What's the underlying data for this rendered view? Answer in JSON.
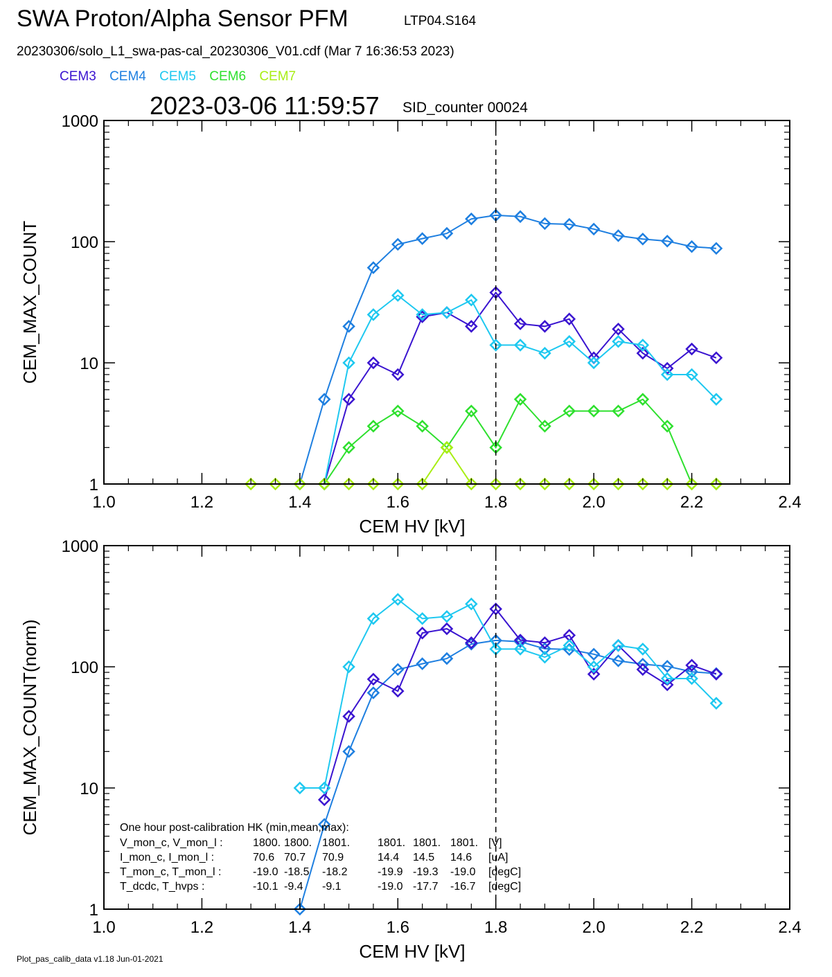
{
  "header": {
    "title": "SWA Proton/Alpha Sensor PFM",
    "subtitle": "LTP04.S164",
    "file_line": "20230306/solo_L1_swa-pas-cal_20230306_V01.cdf  (Mar  7 16:36:53 2023)",
    "datetime": "2023-03-06 11:59:57",
    "sid_counter": "SID_counter 00024"
  },
  "legend": [
    {
      "label": "CEM3",
      "color": "#3a14d0"
    },
    {
      "label": "CEM4",
      "color": "#1e7fe0"
    },
    {
      "label": "CEM5",
      "color": "#1ec8f0"
    },
    {
      "label": "CEM6",
      "color": "#2ee02e"
    },
    {
      "label": "CEM7",
      "color": "#a8ee14"
    }
  ],
  "chart_data": [
    {
      "type": "line",
      "xlabel": "CEM HV [kV]",
      "ylabel": "CEM_MAX_COUNT",
      "xlim": [
        1.0,
        2.4
      ],
      "ylim": [
        1,
        1000
      ],
      "yscale": "log",
      "xticks": [
        "1.0",
        "1.2",
        "1.4",
        "1.6",
        "1.8",
        "2.0",
        "2.2",
        "2.4"
      ],
      "yticks": [
        "1",
        "10",
        "100",
        "1000"
      ],
      "vline": 1.8,
      "series": [
        {
          "name": "CEM4",
          "color": "#1e7fe0",
          "x": [
            1.4,
            1.45,
            1.5,
            1.55,
            1.6,
            1.65,
            1.7,
            1.75,
            1.8,
            1.85,
            1.9,
            1.95,
            2.0,
            2.05,
            2.1,
            2.15,
            2.2,
            2.25
          ],
          "y": [
            1,
            5,
            20,
            61,
            95,
            106,
            117,
            154,
            165,
            161,
            141,
            139,
            127,
            112,
            105,
            101,
            91,
            88
          ]
        },
        {
          "name": "CEM3",
          "color": "#3a14d0",
          "x": [
            1.45,
            1.5,
            1.55,
            1.6,
            1.65,
            1.7,
            1.75,
            1.8,
            1.85,
            1.9,
            1.95,
            2.0,
            2.05,
            2.1,
            2.15,
            2.2,
            2.25
          ],
          "y": [
            1,
            5,
            10,
            8,
            24,
            26,
            20,
            38,
            21,
            20,
            23,
            11,
            19,
            12,
            9,
            13,
            11
          ]
        },
        {
          "name": "CEM5",
          "color": "#1ec8f0",
          "x": [
            1.45,
            1.5,
            1.55,
            1.6,
            1.65,
            1.7,
            1.75,
            1.8,
            1.85,
            1.9,
            1.95,
            2.0,
            2.05,
            2.1,
            2.15,
            2.2,
            2.25
          ],
          "y": [
            1,
            10,
            25,
            36,
            25,
            26,
            33,
            14,
            14,
            12,
            15,
            10,
            15,
            14,
            8,
            8,
            5
          ]
        },
        {
          "name": "CEM6",
          "color": "#2ee02e",
          "x": [
            1.45,
            1.5,
            1.55,
            1.6,
            1.65,
            1.7,
            1.75,
            1.8,
            1.85,
            1.9,
            1.95,
            2.0,
            2.05,
            2.1,
            2.15,
            2.2,
            2.25
          ],
          "y": [
            1,
            2,
            3,
            4,
            3,
            2,
            4,
            2,
            5,
            3,
            4,
            4,
            4,
            5,
            3,
            1,
            1
          ]
        },
        {
          "name": "CEM7",
          "color": "#a8ee14",
          "x": [
            1.3,
            1.35,
            1.4,
            1.45,
            1.5,
            1.55,
            1.6,
            1.65,
            1.7,
            1.75,
            1.8,
            1.85,
            1.9,
            1.95,
            2.0,
            2.05,
            2.1,
            2.15,
            2.2,
            2.25
          ],
          "y": [
            1,
            1,
            1,
            1,
            1,
            1,
            1,
            1,
            2,
            1,
            1,
            1,
            1,
            1,
            1,
            1,
            1,
            1,
            1,
            1
          ]
        }
      ]
    },
    {
      "type": "line",
      "xlabel": "CEM HV [kV]",
      "ylabel": "CEM_MAX_COUNT(norm)",
      "xlim": [
        1.0,
        2.4
      ],
      "ylim": [
        1,
        1000
      ],
      "yscale": "log",
      "xticks": [
        "1.0",
        "1.2",
        "1.4",
        "1.6",
        "1.8",
        "2.0",
        "2.2",
        "2.4"
      ],
      "yticks": [
        "1",
        "10",
        "100",
        "1000"
      ],
      "vline": 1.8,
      "series": [
        {
          "name": "CEM4",
          "color": "#1e7fe0",
          "x": [
            1.4,
            1.45,
            1.5,
            1.55,
            1.6,
            1.65,
            1.7,
            1.75,
            1.8,
            1.85,
            1.9,
            1.95,
            2.0,
            2.05,
            2.1,
            2.15,
            2.2,
            2.25
          ],
          "y": [
            1,
            5,
            20,
            61,
            95,
            106,
            117,
            154,
            165,
            161,
            141,
            139,
            127,
            112,
            105,
            101,
            91,
            88
          ]
        },
        {
          "name": "CEM3",
          "color": "#3a14d0",
          "x": [
            1.45,
            1.5,
            1.55,
            1.6,
            1.65,
            1.7,
            1.75,
            1.8,
            1.85,
            1.9,
            1.95,
            2.0,
            2.05,
            2.1,
            2.15,
            2.2,
            2.25
          ],
          "y": [
            8,
            39,
            79,
            63,
            190,
            206,
            158,
            300,
            166,
            158,
            182,
            87,
            150,
            95,
            71,
            103,
            87
          ]
        },
        {
          "name": "CEM5",
          "color": "#1ec8f0",
          "x": [
            1.4,
            1.45,
            1.5,
            1.55,
            1.6,
            1.65,
            1.7,
            1.75,
            1.8,
            1.85,
            1.9,
            1.95,
            2.0,
            2.05,
            2.1,
            2.15,
            2.2,
            2.25
          ],
          "y": [
            10,
            10,
            100,
            250,
            360,
            250,
            260,
            330,
            140,
            140,
            120,
            150,
            100,
            150,
            140,
            80,
            80,
            50
          ]
        }
      ],
      "annotation": {
        "title": "One hour post-calibration HK (min,mean,max):",
        "rows": [
          [
            "V_mon_c, V_mon_l :",
            "1800.",
            "1800.",
            "1801.",
            "1801.",
            "1801.",
            "1801.",
            "[V]"
          ],
          [
            "I_mon_c,  I_mon_l :",
            "70.6",
            "70.7",
            "70.9",
            "14.4",
            "14.5",
            "14.6",
            "[uA]"
          ],
          [
            "T_mon_c, T_mon_l :",
            "-19.0",
            "-18.5",
            "-18.2",
            "-19.9",
            "-19.3",
            "-19.0",
            "[degC]"
          ],
          [
            "T_dcdc,    T_hvps :",
            "-10.1",
            "-9.4",
            "-9.1",
            "-19.0",
            "-17.7",
            "-16.7",
            "[degC]"
          ]
        ]
      }
    }
  ],
  "footer": "Plot_pas_calib_data v1.18 Jun-01-2021"
}
